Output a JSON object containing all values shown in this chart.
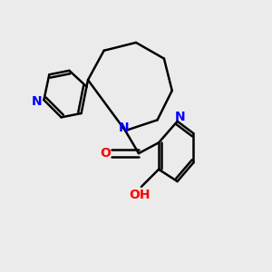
{
  "background_color": "#ebebeb",
  "bond_color": "#000000",
  "nitrogen_color": "#0000ff",
  "oxygen_color": "#ff0000",
  "bond_width": 1.8,
  "figsize": [
    3.0,
    3.0
  ],
  "dpi": 100,
  "xlim": [
    0,
    10
  ],
  "ylim": [
    0,
    10
  ]
}
